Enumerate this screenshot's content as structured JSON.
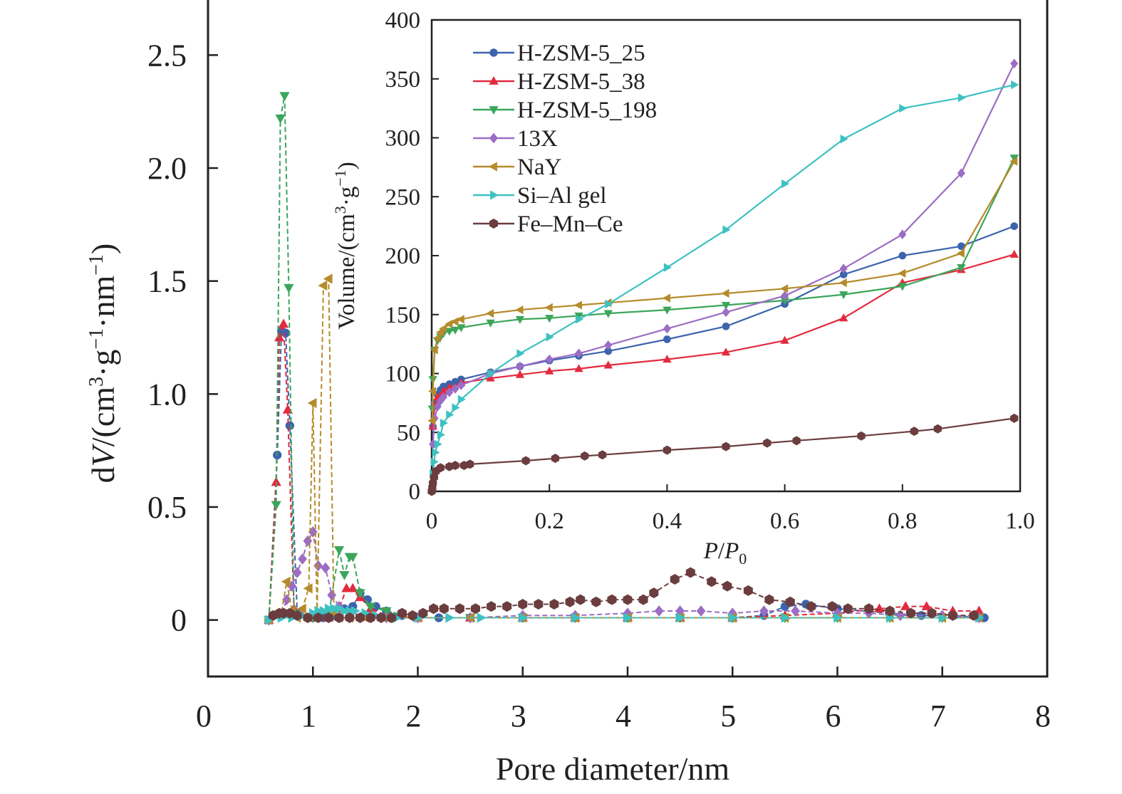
{
  "chart_data": [
    {
      "type": "line",
      "panel": "main",
      "xlabel": "Pore diameter/nm",
      "ylabel_parts": {
        "prefix": "d",
        "var": "V",
        "open": "/(cm",
        "sup3": "3",
        "mid1": "·g",
        "supm1a": "−1",
        "mid2": "·nm",
        "supm1b": "−1",
        "close": ")"
      },
      "xlim": [
        0,
        8
      ],
      "ylim": [
        -0.25,
        2.75
      ],
      "x_ticks": [
        "0",
        "1",
        "2",
        "3",
        "4",
        "5",
        "6",
        "7",
        "8"
      ],
      "x_tick_values": [
        0,
        1,
        2,
        3,
        4,
        5,
        6,
        7,
        8
      ],
      "y_ticks": [
        "0",
        "0.5",
        "1.0",
        "1.5",
        "2.0",
        "2.5"
      ],
      "y_tick_values": [
        0,
        0.5,
        1.0,
        1.5,
        2.0,
        2.5
      ],
      "series": [
        {
          "name": "H-ZSM-5_25",
          "color": "#3b64ad",
          "marker": "circle",
          "x": [
            0.58,
            0.66,
            0.7,
            0.74,
            0.78,
            0.85,
            1.0,
            1.1,
            1.2,
            1.3,
            1.38,
            1.45,
            1.52,
            1.6,
            1.7,
            1.85,
            2.0,
            2.2,
            2.5,
            3.0,
            3.5,
            4.0,
            4.5,
            5.0,
            5.3,
            5.5,
            5.7,
            6.0,
            6.5,
            6.8,
            7.1,
            7.4
          ],
          "y": [
            0.0,
            0.73,
            1.28,
            1.27,
            0.86,
            0.03,
            0.01,
            0.01,
            0.02,
            0.05,
            0.06,
            0.12,
            0.09,
            0.06,
            0.04,
            0.02,
            0.01,
            0.01,
            0.01,
            0.01,
            0.01,
            0.01,
            0.01,
            0.01,
            0.02,
            0.06,
            0.07,
            0.05,
            0.03,
            0.02,
            0.02,
            0.01
          ]
        },
        {
          "name": "H-ZSM-5_38",
          "color": "#e32a3e",
          "marker": "triangle-up",
          "x": [
            0.58,
            0.65,
            0.68,
            0.72,
            0.76,
            0.82,
            1.0,
            1.15,
            1.25,
            1.32,
            1.38,
            1.45,
            1.55,
            1.7,
            2.0,
            2.5,
            3.0,
            3.5,
            4.0,
            4.5,
            5.0,
            5.5,
            6.0,
            6.4,
            6.65,
            6.85,
            7.1,
            7.35
          ],
          "y": [
            0.0,
            0.61,
            1.25,
            1.31,
            0.93,
            0.05,
            0.01,
            0.01,
            0.05,
            0.14,
            0.14,
            0.1,
            0.05,
            0.02,
            0.01,
            0.01,
            0.01,
            0.01,
            0.01,
            0.01,
            0.01,
            0.02,
            0.03,
            0.05,
            0.06,
            0.06,
            0.04,
            0.04
          ]
        },
        {
          "name": "H-ZSM-5_198",
          "color": "#3ba65a",
          "marker": "triangle-down",
          "x": [
            0.58,
            0.65,
            0.69,
            0.73,
            0.77,
            0.82,
            1.0,
            1.15,
            1.25,
            1.3,
            1.35,
            1.38,
            1.45,
            1.55,
            1.7,
            2.0,
            2.5,
            3.0,
            3.5,
            4.0,
            4.5,
            5.0,
            5.5,
            6.0,
            6.5,
            7.0,
            7.35
          ],
          "y": [
            0.0,
            0.51,
            2.22,
            2.32,
            1.47,
            0.03,
            0.01,
            0.02,
            0.31,
            0.2,
            0.28,
            0.28,
            0.12,
            0.06,
            0.04,
            0.01,
            0.01,
            0.01,
            0.01,
            0.01,
            0.01,
            0.01,
            0.01,
            0.01,
            0.01,
            0.01,
            0.01
          ]
        },
        {
          "name": "13X",
          "color": "#9c6dc4",
          "marker": "diamond",
          "x": [
            0.58,
            0.7,
            0.75,
            0.8,
            0.85,
            0.9,
            0.95,
            1.0,
            1.05,
            1.12,
            1.18,
            1.25,
            1.35,
            1.5,
            1.7,
            2.0,
            2.5,
            3.0,
            3.5,
            4.0,
            4.3,
            4.5,
            4.7,
            5.0,
            5.3,
            5.6,
            6.0,
            6.3,
            6.6,
            7.0,
            7.35
          ],
          "y": [
            0.0,
            0.02,
            0.09,
            0.15,
            0.21,
            0.27,
            0.35,
            0.39,
            0.24,
            0.23,
            0.11,
            0.06,
            0.03,
            0.02,
            0.01,
            0.01,
            0.01,
            0.02,
            0.02,
            0.03,
            0.04,
            0.04,
            0.04,
            0.03,
            0.04,
            0.04,
            0.03,
            0.03,
            0.02,
            0.02,
            0.01
          ]
        },
        {
          "name": "NaY",
          "color": "#b58b2b",
          "marker": "triangle-left",
          "x": [
            0.58,
            0.7,
            0.75,
            0.8,
            0.85,
            0.9,
            0.96,
            1.0,
            1.04,
            1.1,
            1.15,
            1.2,
            1.25,
            1.35,
            1.5,
            1.7,
            2.0,
            2.5,
            3.0,
            3.5,
            4.0,
            4.5,
            5.0,
            5.5,
            6.0,
            6.5,
            7.0,
            7.35
          ],
          "y": [
            0.0,
            0.03,
            0.17,
            0.04,
            0.01,
            0.05,
            0.14,
            0.96,
            0.03,
            1.48,
            1.51,
            0.03,
            0.01,
            0.01,
            0.01,
            0.01,
            0.01,
            0.01,
            0.01,
            0.01,
            0.01,
            0.01,
            0.01,
            0.01,
            0.01,
            0.01,
            0.01,
            0.01
          ]
        },
        {
          "name": "Si–Al gel",
          "color": "#3ec1c1",
          "marker": "triangle-right",
          "x": [
            0.58,
            0.7,
            0.8,
            0.9,
            1.0,
            1.05,
            1.1,
            1.15,
            1.2,
            1.25,
            1.3,
            1.35,
            1.4,
            1.5,
            1.6,
            1.8,
            2.0,
            2.3,
            2.6,
            3.0,
            3.5,
            4.0,
            4.5,
            5.0,
            5.5,
            6.0,
            6.5,
            7.0,
            7.35
          ],
          "y": [
            0.0,
            0.01,
            0.01,
            0.02,
            0.03,
            0.04,
            0.04,
            0.05,
            0.05,
            0.05,
            0.04,
            0.04,
            0.04,
            0.03,
            0.02,
            0.01,
            0.01,
            0.01,
            0.01,
            0.01,
            0.01,
            0.01,
            0.01,
            0.01,
            0.01,
            0.01,
            0.01,
            0.01,
            0.01
          ]
        },
        {
          "name": "Fe–Mn–Ce",
          "color": "#6b3d3f",
          "marker": "hexagon",
          "x": [
            0.62,
            0.68,
            0.72,
            0.78,
            0.85,
            0.95,
            1.05,
            1.15,
            1.25,
            1.35,
            1.45,
            1.55,
            1.65,
            1.75,
            1.85,
            1.95,
            2.05,
            2.15,
            2.25,
            2.4,
            2.55,
            2.7,
            2.85,
            3.0,
            3.15,
            3.3,
            3.45,
            3.55,
            3.7,
            3.85,
            4.0,
            4.15,
            4.25,
            4.45,
            4.6,
            4.8,
            4.95,
            5.15,
            5.35,
            5.55,
            5.75,
            5.95,
            6.1,
            6.3,
            6.5,
            6.7,
            6.9,
            7.1,
            7.3
          ],
          "y": [
            0.02,
            0.03,
            0.03,
            0.03,
            0.02,
            0.01,
            0.01,
            0.01,
            0.01,
            0.01,
            0.01,
            0.01,
            0.01,
            0.01,
            0.03,
            0.02,
            0.03,
            0.05,
            0.05,
            0.05,
            0.05,
            0.06,
            0.06,
            0.07,
            0.07,
            0.07,
            0.08,
            0.09,
            0.08,
            0.09,
            0.09,
            0.09,
            0.12,
            0.18,
            0.21,
            0.17,
            0.15,
            0.13,
            0.09,
            0.08,
            0.06,
            0.06,
            0.05,
            0.05,
            0.04,
            0.03,
            0.03,
            0.02,
            0.02
          ]
        }
      ]
    },
    {
      "type": "line",
      "panel": "inset",
      "xlabel_parts": {
        "p": "P",
        "slash": "/",
        "p0": "P",
        "sub0": "0"
      },
      "ylabel_parts": {
        "open": "Volume/(cm",
        "sup3": "3",
        "mid": "·g",
        "supm1": "−1",
        "close": ")"
      },
      "xlim": [
        0,
        1.0
      ],
      "ylim": [
        0,
        400
      ],
      "x_ticks": [
        "0",
        "0.2",
        "0.4",
        "0.6",
        "0.8",
        "1.0"
      ],
      "x_tick_values": [
        0,
        0.2,
        0.4,
        0.6,
        0.8,
        1.0
      ],
      "y_ticks": [
        "0",
        "50",
        "100",
        "150",
        "200",
        "250",
        "300",
        "350",
        "400"
      ],
      "y_tick_values": [
        0,
        50,
        100,
        150,
        200,
        250,
        300,
        350,
        400
      ],
      "legend_position": "top-left",
      "series": [
        {
          "name": "H-ZSM-5_25",
          "color": "#3b64ad",
          "marker": "circle",
          "x": [
            0.002,
            0.005,
            0.01,
            0.015,
            0.02,
            0.03,
            0.04,
            0.05,
            0.1,
            0.15,
            0.2,
            0.25,
            0.3,
            0.4,
            0.5,
            0.6,
            0.7,
            0.8,
            0.9,
            0.99
          ],
          "y": [
            55,
            75,
            82,
            86,
            89,
            91,
            93,
            95,
            101,
            106,
            111,
            115,
            119,
            129,
            140,
            159,
            184,
            200,
            208,
            225
          ]
        },
        {
          "name": "H-ZSM-5_38",
          "color": "#e32a3e",
          "marker": "triangle-up",
          "x": [
            0.002,
            0.005,
            0.01,
            0.02,
            0.03,
            0.05,
            0.1,
            0.15,
            0.2,
            0.25,
            0.3,
            0.4,
            0.5,
            0.6,
            0.7,
            0.8,
            0.9,
            0.99
          ],
          "y": [
            55,
            72,
            80,
            85,
            88,
            92,
            96,
            99,
            102,
            104,
            107,
            112,
            118,
            128,
            147,
            177,
            188,
            201
          ]
        },
        {
          "name": "H-ZSM-5_198",
          "color": "#3ba65a",
          "marker": "triangle-down",
          "x": [
            0.001,
            0.002,
            0.005,
            0.01,
            0.015,
            0.02,
            0.03,
            0.04,
            0.05,
            0.1,
            0.15,
            0.2,
            0.25,
            0.3,
            0.4,
            0.5,
            0.6,
            0.7,
            0.8,
            0.9,
            0.99
          ],
          "y": [
            70,
            95,
            120,
            128,
            131,
            134,
            136,
            137,
            139,
            143,
            146,
            147,
            149,
            151,
            154,
            158,
            162,
            167,
            174,
            190,
            283
          ]
        },
        {
          "name": "13X",
          "color": "#9c6dc4",
          "marker": "diamond",
          "x": [
            0.002,
            0.005,
            0.01,
            0.015,
            0.02,
            0.03,
            0.04,
            0.05,
            0.1,
            0.15,
            0.2,
            0.25,
            0.3,
            0.4,
            0.5,
            0.6,
            0.7,
            0.8,
            0.9,
            0.99
          ],
          "y": [
            40,
            62,
            72,
            77,
            80,
            84,
            87,
            90,
            100,
            106,
            112,
            117,
            124,
            138,
            152,
            166,
            189,
            218,
            270,
            363
          ]
        },
        {
          "name": "NaY",
          "color": "#b58b2b",
          "marker": "triangle-left",
          "x": [
            0.001,
            0.002,
            0.005,
            0.01,
            0.015,
            0.02,
            0.03,
            0.04,
            0.05,
            0.1,
            0.15,
            0.2,
            0.25,
            0.3,
            0.4,
            0.5,
            0.6,
            0.7,
            0.8,
            0.9,
            0.99
          ],
          "y": [
            60,
            85,
            120,
            130,
            135,
            138,
            142,
            144,
            146,
            151,
            154,
            156,
            158,
            160,
            164,
            168,
            172,
            177,
            185,
            202,
            280
          ]
        },
        {
          "name": "Si–Al gel",
          "color": "#3ec1c1",
          "marker": "triangle-right",
          "x": [
            0.002,
            0.004,
            0.006,
            0.01,
            0.015,
            0.02,
            0.03,
            0.04,
            0.05,
            0.1,
            0.15,
            0.2,
            0.25,
            0.3,
            0.4,
            0.5,
            0.6,
            0.7,
            0.8,
            0.9,
            0.99
          ],
          "y": [
            15,
            25,
            33,
            40,
            48,
            58,
            65,
            71,
            78,
            100,
            117,
            131,
            146,
            159,
            190,
            222,
            261,
            299,
            325,
            334,
            345
          ]
        },
        {
          "name": "Fe–Mn–Ce",
          "color": "#6b3d3f",
          "marker": "hexagon",
          "x": [
            0.0,
            0.001,
            0.002,
            0.004,
            0.007,
            0.015,
            0.03,
            0.04,
            0.055,
            0.065,
            0.16,
            0.21,
            0.26,
            0.29,
            0.4,
            0.5,
            0.57,
            0.62,
            0.73,
            0.82,
            0.86,
            0.99
          ],
          "y": [
            0,
            3,
            7,
            12,
            17,
            20,
            21,
            22,
            22,
            23,
            26,
            28,
            30,
            31,
            35,
            38,
            41,
            43,
            47,
            51,
            53,
            62
          ]
        }
      ]
    }
  ]
}
